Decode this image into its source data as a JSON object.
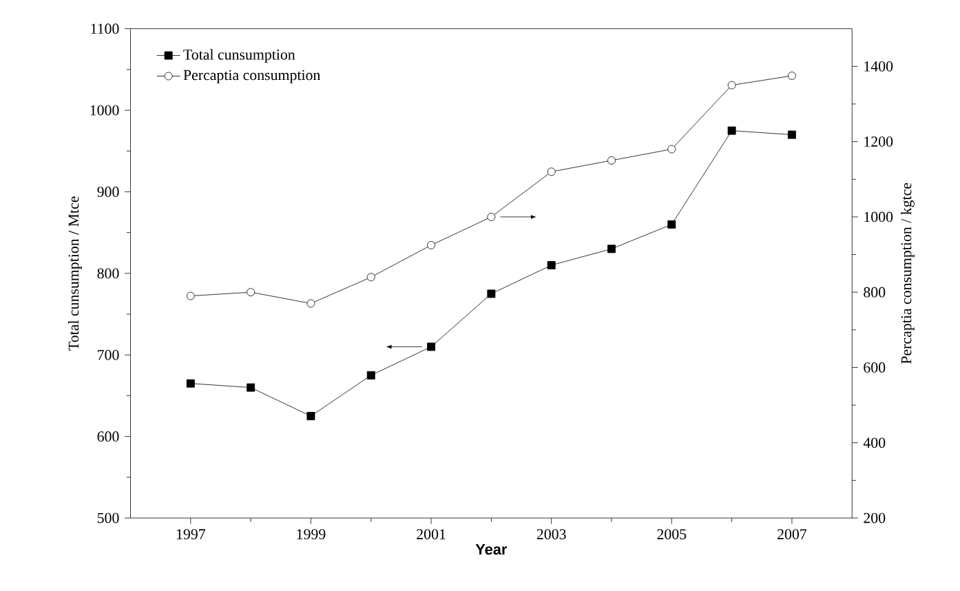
{
  "chart_data": {
    "type": "line",
    "xlabel": "Year",
    "ylabel": "Total cunsumption / Mtce",
    "y2label": "Percaptia consumption / kgtce",
    "x": [
      1997,
      1998,
      1999,
      2000,
      2001,
      2002,
      2003,
      2004,
      2005,
      2006,
      2007
    ],
    "series": [
      {
        "name": "Total cunsumption",
        "color": "#000000",
        "marker": "square",
        "values": [
          665,
          660,
          625,
          675,
          710,
          775,
          810,
          830,
          860,
          975,
          970
        ]
      },
      {
        "name": "Percaptia consumption",
        "color": "#000000",
        "marker": "circle",
        "axis": "y2",
        "values": [
          790,
          800,
          770,
          840,
          925,
          1000,
          1120,
          1150,
          1180,
          1350,
          1375
        ]
      }
    ],
    "xlim": [
      1996,
      2008
    ],
    "xticks": [
      1997,
      1999,
      2001,
      2003,
      2005,
      2007
    ],
    "ylim": [
      500,
      1100
    ],
    "yticks": [
      500,
      600,
      700,
      800,
      900,
      1000,
      1100
    ],
    "y2lim": [
      200,
      1500
    ],
    "y2ticks": [
      200,
      400,
      600,
      800,
      1000,
      1200,
      1400
    ],
    "legend": "top left",
    "grid": false,
    "line_style": "solid"
  }
}
